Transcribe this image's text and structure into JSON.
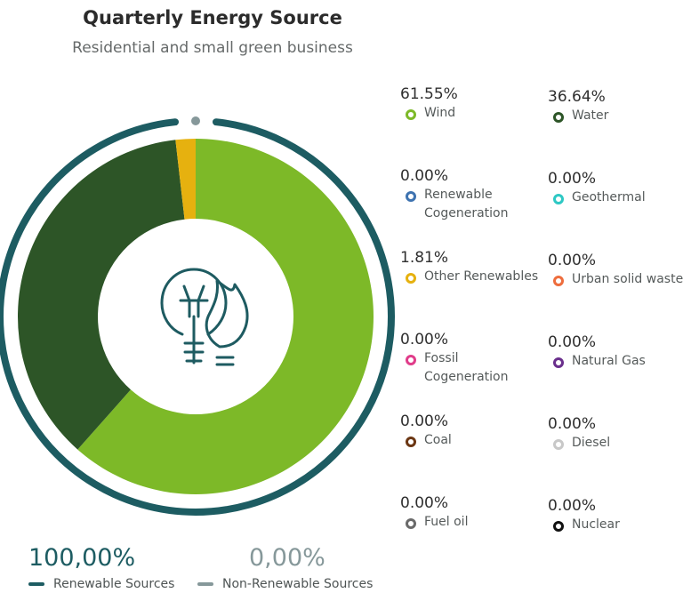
{
  "chart_data": {
    "type": "pie",
    "title": "Quarterly Energy Source",
    "subtitle": "Residential and small green business",
    "categories": [
      "Wind",
      "Water",
      "Renewable Cogeneration",
      "Geothermal",
      "Other Renewables",
      "Urban solid waste",
      "Fossil Cogeneration",
      "Natural Gas",
      "Coal",
      "Diesel",
      "Fuel oil",
      "Nuclear"
    ],
    "values": [
      61.55,
      36.64,
      0.0,
      0.0,
      1.81,
      0.0,
      0.0,
      0.0,
      0.0,
      0.0,
      0.0,
      0.0
    ],
    "value_labels": [
      "61.55%",
      "36.64%",
      "0.00%",
      "0.00%",
      "1.81%",
      "0.00%",
      "0.00%",
      "0.00%",
      "0.00%",
      "0.00%",
      "0.00%",
      "0.00%"
    ],
    "colors": [
      "#7db928",
      "#2d5527",
      "#3e73b0",
      "#2ec8c4",
      "#e6b10f",
      "#ee6d3d",
      "#e03c8a",
      "#6a2f8c",
      "#6b3613",
      "#c8c8c8",
      "#6a6a6a",
      "#111111"
    ],
    "legend_position": "right",
    "outer_ring": {
      "series": [
        {
          "name": "Renewable Sources",
          "value_label": "100,00%",
          "value": 100.0,
          "color": "#1d5c62"
        },
        {
          "name": "Non-Renewable Sources",
          "value_label": "0,00%",
          "value": 0.0,
          "color": "#86989a"
        }
      ]
    }
  },
  "center_icon": "bulb-flame-icon"
}
